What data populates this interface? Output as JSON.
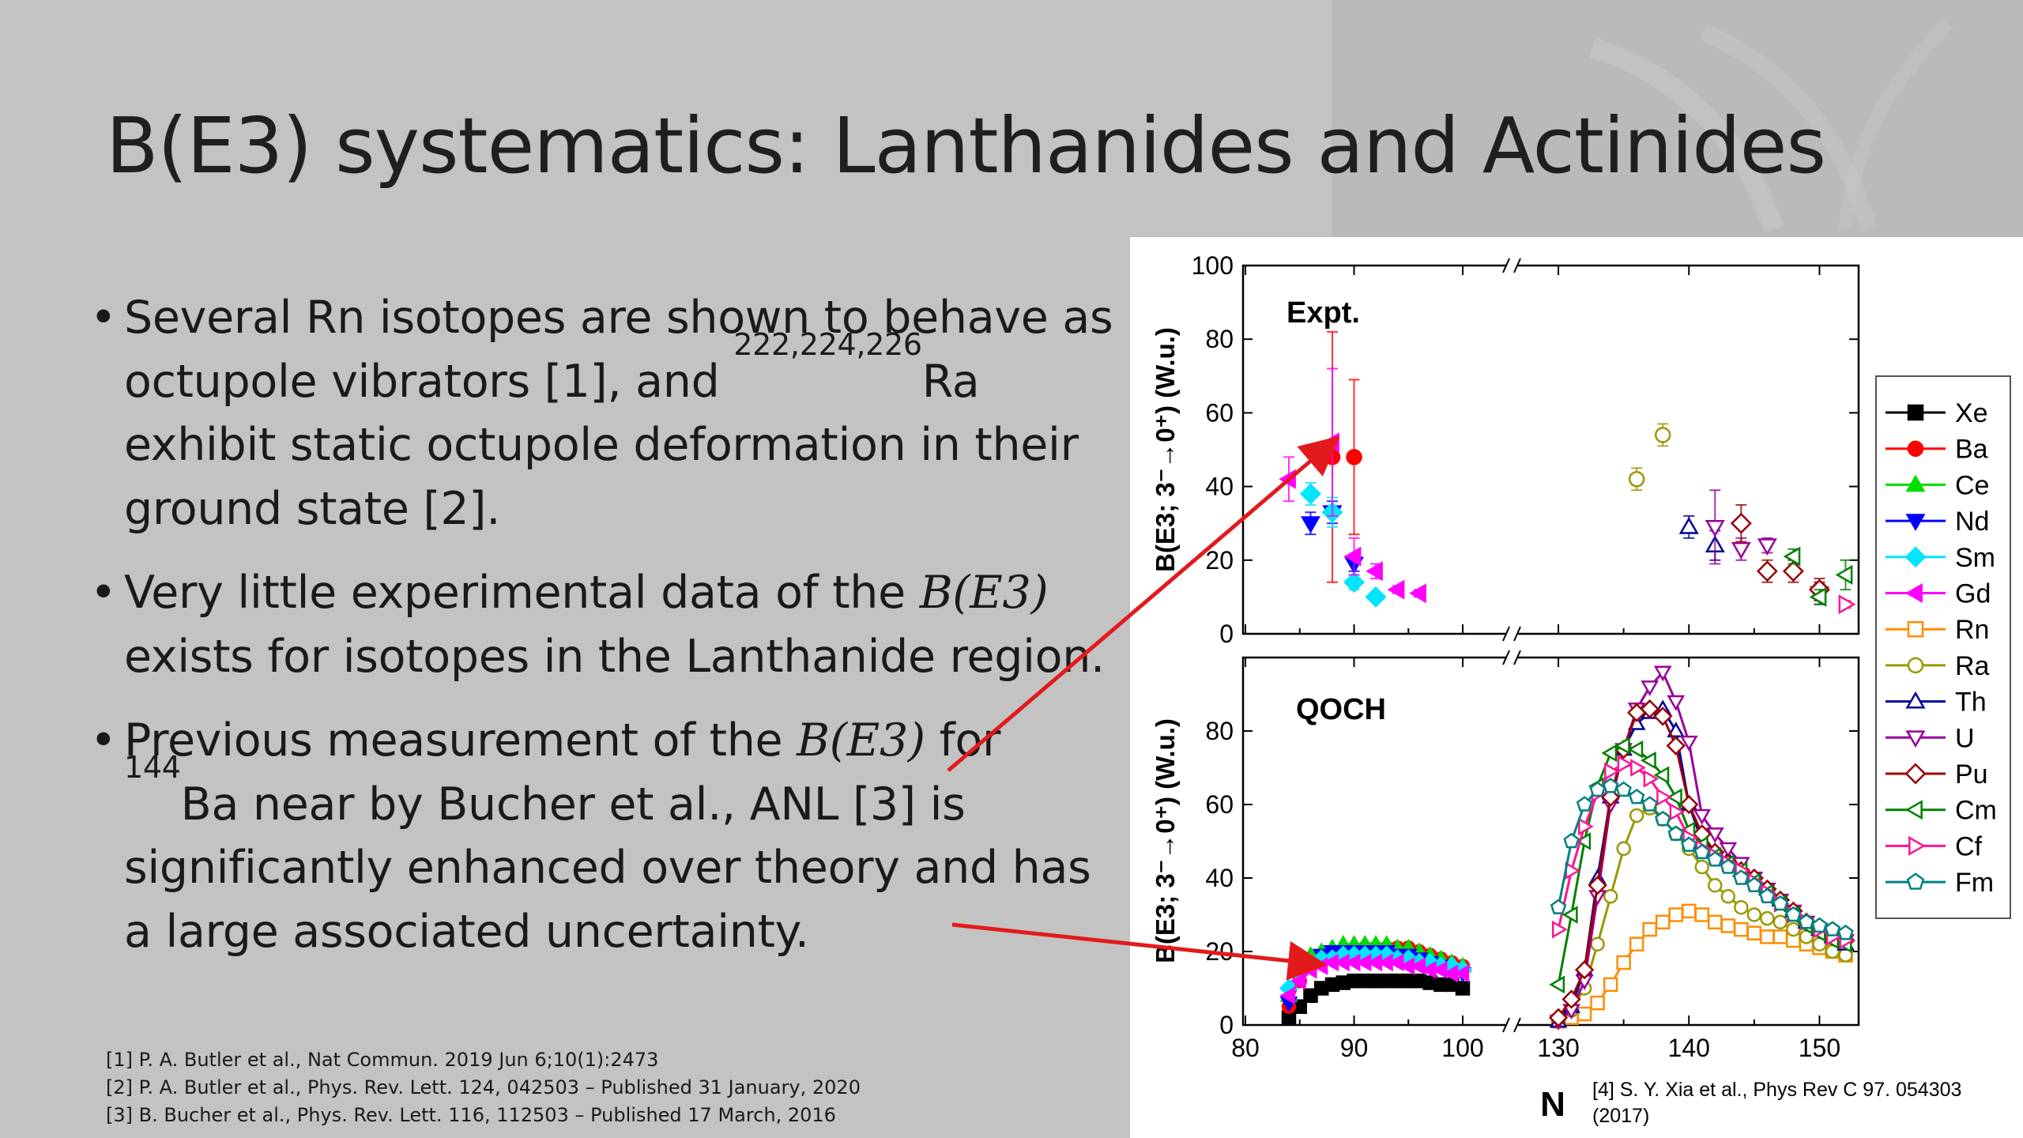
{
  "slide": {
    "title": "B(E3) systematics: Lanthanides and Actinides",
    "bullets": {
      "b1": {
        "text1": "Several Rn isotopes are shown to behave as octupole vibrators [1], and ",
        "sup": "222,224,226",
        "text2": "Ra exhibit static octupole deformation in their ground state [2]."
      },
      "b2": {
        "text1": "Very little experimental data of the ",
        "math": "B(E3)",
        "text2": " exists for isotopes in the Lanthanide region."
      },
      "b3": {
        "text1": "Previous measurement of the ",
        "math": "B(E3)",
        "text2": " for ",
        "sup": "144",
        "text3": "Ba near by Bucher et al., ANL  [3] is significantly enhanced over theory and has a large associated uncertainty."
      }
    },
    "references": [
      "[1] P. A. Butler et al., Nat Commun. 2019 Jun 6;10(1):2473",
      "[2] P. A. Butler et al.,  Phys. Rev. Lett. 124, 042503 – Published 31 January, 2020",
      "[3] B. Bucher et al., Phys. Rev. Lett. 116, 112503 – Published 17 March, 2016"
    ],
    "figure_ref": "[4] S. Y. Xia et al., Phys Rev C 97. 054303 (2017)",
    "arrow_color": "#e31a1c"
  },
  "chart_data": [
    {
      "type": "scatter",
      "panel_label": "Expt.",
      "ylabel": "B(E3; 3⁻→0⁺) (W.u.)",
      "ylim": [
        0,
        100
      ],
      "yticks": [
        0,
        20,
        40,
        60,
        80,
        100
      ],
      "xlim_segments": [
        [
          80,
          100
        ],
        [
          128,
          153
        ]
      ],
      "series": [
        {
          "name": "Ba",
          "points": [
            [
              88,
              48,
              34
            ],
            [
              90,
              48,
              21
            ]
          ]
        },
        {
          "name": "Nd",
          "points": [
            [
              86,
              30,
              3
            ],
            [
              88,
              33,
              3
            ],
            [
              90,
              19,
              2
            ]
          ]
        },
        {
          "name": "Sm",
          "points": [
            [
              86,
              38,
              3
            ],
            [
              88,
              33,
              4
            ],
            [
              90,
              14,
              2
            ],
            [
              92,
              10,
              1
            ]
          ]
        },
        {
          "name": "Gd",
          "points": [
            [
              84,
              42,
              6
            ],
            [
              88,
              52,
              20
            ],
            [
              90,
              21,
              5
            ],
            [
              92,
              17,
              2
            ],
            [
              94,
              12,
              1
            ],
            [
              96,
              11,
              1
            ]
          ]
        },
        {
          "name": "Ra",
          "points": [
            [
              136,
              42,
              3
            ],
            [
              138,
              54,
              3
            ],
            [
              150,
              12,
              2
            ]
          ]
        },
        {
          "name": "Th",
          "points": [
            [
              140,
              29,
              3
            ],
            [
              142,
              24,
              4
            ]
          ]
        },
        {
          "name": "U",
          "points": [
            [
              142,
              29,
              10
            ],
            [
              144,
              23,
              3
            ],
            [
              146,
              24,
              2
            ],
            [
              150,
              11,
              3
            ]
          ]
        },
        {
          "name": "Pu",
          "points": [
            [
              144,
              30,
              5
            ],
            [
              146,
              17,
              3
            ],
            [
              148,
              17,
              3
            ],
            [
              150,
              12,
              3
            ]
          ]
        },
        {
          "name": "Cm",
          "points": [
            [
              148,
              21,
              2
            ],
            [
              150,
              10,
              2
            ],
            [
              152,
              16,
              4
            ]
          ]
        },
        {
          "name": "Cf",
          "points": [
            [
              152,
              8,
              1
            ]
          ]
        }
      ]
    },
    {
      "type": "line",
      "panel_label": "QOCH",
      "ylabel": "B(E3; 3⁻→0⁺) (W.u.)",
      "xlabel": "N",
      "ylim": [
        0,
        100
      ],
      "yticks": [
        0,
        20,
        40,
        60,
        80
      ],
      "xticks": [
        80,
        90,
        100,
        130,
        140,
        150
      ],
      "xlim_segments": [
        [
          80,
          100
        ],
        [
          128,
          153
        ]
      ],
      "series": [
        {
          "name": "Xe",
          "color": "#000000",
          "marker": "square-filled",
          "x": [
            84,
            85,
            86,
            87,
            88,
            89,
            90,
            91,
            92,
            93,
            94,
            95,
            96,
            97,
            98,
            99,
            100
          ],
          "y": [
            2,
            5,
            8,
            10,
            11,
            11.5,
            12,
            12,
            12,
            12,
            12,
            12,
            12,
            11.5,
            11,
            11,
            10
          ]
        },
        {
          "name": "Ba",
          "color": "#ff0000",
          "marker": "circle-filled",
          "x": [
            84,
            85,
            86,
            87,
            88,
            89,
            90,
            91,
            92,
            93,
            94,
            95,
            96,
            97,
            98,
            99,
            100
          ],
          "y": [
            5,
            12,
            16,
            18,
            19,
            20,
            20,
            21,
            21,
            21,
            21,
            21,
            20,
            19,
            18,
            17,
            16
          ]
        },
        {
          "name": "Ce",
          "color": "#00dd00",
          "marker": "triangle-up-filled",
          "x": [
            84,
            85,
            86,
            87,
            88,
            89,
            90,
            91,
            92,
            93,
            94,
            95,
            96,
            97,
            98,
            99,
            100
          ],
          "y": [
            8,
            15,
            19,
            20,
            21,
            22,
            22,
            22,
            22,
            22,
            21,
            21,
            20,
            19,
            18,
            17,
            16
          ]
        },
        {
          "name": "Nd",
          "color": "#0000ff",
          "marker": "triangle-down-filled",
          "x": [
            84,
            85,
            86,
            87,
            88,
            89,
            90,
            91,
            92,
            93,
            94,
            95,
            96,
            97,
            98,
            99,
            100
          ],
          "y": [
            6,
            13,
            17,
            19,
            20,
            20,
            20,
            20,
            20,
            20,
            19,
            19,
            18,
            17,
            16,
            15,
            14
          ]
        },
        {
          "name": "Sm",
          "color": "#00e6ff",
          "marker": "diamond-filled",
          "x": [
            84,
            85,
            86,
            87,
            88,
            89,
            90,
            91,
            92,
            93,
            94,
            95,
            96,
            97,
            98,
            99,
            100
          ],
          "y": [
            10,
            14,
            17,
            18,
            18,
            19,
            19,
            19,
            19,
            19,
            18,
            18,
            17,
            17,
            16,
            16,
            15
          ]
        },
        {
          "name": "Gd",
          "color": "#ff00ff",
          "marker": "triangle-left-filled",
          "x": [
            84,
            85,
            86,
            87,
            88,
            89,
            90,
            91,
            92,
            93,
            94,
            95,
            96,
            97,
            98,
            99,
            100
          ],
          "y": [
            8,
            12,
            15,
            16,
            17,
            17,
            17,
            17,
            17,
            17,
            17,
            16,
            16,
            15,
            15,
            14,
            14
          ]
        },
        {
          "name": "Rn",
          "color": "#ff8c00",
          "marker": "square-open",
          "x": [
            130,
            131,
            132,
            133,
            134,
            135,
            136,
            137,
            138,
            139,
            140,
            141,
            142,
            143,
            144,
            145,
            146,
            147,
            148,
            149,
            150,
            151,
            152
          ],
          "y": [
            1,
            2,
            3,
            6,
            11,
            17,
            22,
            26,
            28,
            30,
            31,
            30,
            28,
            27,
            26,
            25,
            24,
            24,
            23,
            22,
            21,
            20,
            19
          ]
        },
        {
          "name": "Ra",
          "color": "#999900",
          "marker": "circle-open",
          "x": [
            130,
            131,
            132,
            133,
            134,
            135,
            136,
            137,
            138,
            139,
            140,
            141,
            142,
            143,
            144,
            145,
            146,
            147,
            148,
            149,
            150,
            151,
            152
          ],
          "y": [
            1,
            4,
            10,
            22,
            35,
            48,
            57,
            59,
            56,
            52,
            48,
            43,
            38,
            35,
            32,
            30,
            29,
            28,
            26,
            24,
            22,
            20,
            19
          ]
        },
        {
          "name": "Th",
          "color": "#000099",
          "marker": "triangle-up-open",
          "x": [
            130,
            131,
            132,
            133,
            134,
            135,
            136,
            137,
            138,
            139,
            140,
            141,
            142,
            143,
            144,
            145,
            146,
            147,
            148,
            149,
            150,
            151,
            152
          ],
          "y": [
            1,
            5,
            15,
            40,
            62,
            75,
            82,
            85,
            86,
            80,
            60,
            50,
            47,
            45,
            42,
            40,
            37,
            34,
            31,
            28,
            26,
            24,
            22
          ]
        },
        {
          "name": "U",
          "color": "#990099",
          "marker": "triangle-down-open",
          "x": [
            130,
            131,
            132,
            133,
            134,
            135,
            136,
            137,
            138,
            139,
            140,
            141,
            142,
            143,
            144,
            145,
            146,
            147,
            148,
            149,
            150,
            151,
            152
          ],
          "y": [
            1,
            4,
            12,
            35,
            60,
            75,
            86,
            92,
            96,
            88,
            77,
            57,
            52,
            48,
            44,
            40,
            37,
            34,
            31,
            28,
            26,
            24,
            23
          ]
        },
        {
          "name": "Pu",
          "color": "#990000",
          "marker": "diamond-open",
          "x": [
            130,
            131,
            132,
            133,
            134,
            135,
            136,
            137,
            138,
            139,
            140,
            141,
            142,
            143,
            144,
            145,
            146,
            147,
            148,
            149,
            150,
            151,
            152
          ],
          "y": [
            2,
            7,
            15,
            38,
            62,
            75,
            85,
            86,
            84,
            76,
            60,
            52,
            47,
            44,
            42,
            40,
            37,
            34,
            31,
            28,
            26,
            24,
            23
          ]
        },
        {
          "name": "Cm",
          "color": "#008000",
          "marker": "triangle-left-open",
          "x": [
            130,
            131,
            132,
            133,
            134,
            135,
            136,
            137,
            138,
            139,
            140,
            141,
            142,
            143,
            144,
            145,
            146,
            147,
            148,
            149,
            150,
            151,
            152
          ],
          "y": [
            11,
            30,
            50,
            65,
            74,
            76,
            75,
            72,
            68,
            62,
            53,
            49,
            46,
            44,
            42,
            39,
            36,
            33,
            30,
            27,
            25,
            23,
            22
          ]
        },
        {
          "name": "Cf",
          "color": "#ff1493",
          "marker": "triangle-right-open",
          "x": [
            130,
            131,
            132,
            133,
            134,
            135,
            136,
            137,
            138,
            139,
            140,
            141,
            142,
            143,
            144,
            145,
            146,
            147,
            148,
            149,
            150,
            151,
            152
          ],
          "y": [
            26,
            42,
            54,
            63,
            69,
            71,
            70,
            67,
            62,
            58,
            51,
            48,
            46,
            44,
            42,
            39,
            36,
            33,
            30,
            28,
            26,
            24,
            23
          ]
        },
        {
          "name": "Fm",
          "color": "#008080",
          "marker": "pentagon-open",
          "x": [
            130,
            131,
            132,
            133,
            134,
            135,
            136,
            137,
            138,
            139,
            140,
            141,
            142,
            143,
            144,
            145,
            146,
            147,
            148,
            149,
            150,
            151,
            152
          ],
          "y": [
            32,
            50,
            60,
            64,
            65,
            64,
            62,
            60,
            56,
            52,
            49,
            47,
            45,
            43,
            40,
            38,
            35,
            33,
            30,
            28,
            27,
            26,
            25
          ]
        }
      ],
      "legend": {
        "position": "right",
        "entries": [
          "Xe",
          "Ba",
          "Ce",
          "Nd",
          "Sm",
          "Gd",
          "Rn",
          "Ra",
          "Th",
          "U",
          "Pu",
          "Cm",
          "Cf",
          "Fm"
        ]
      }
    }
  ]
}
